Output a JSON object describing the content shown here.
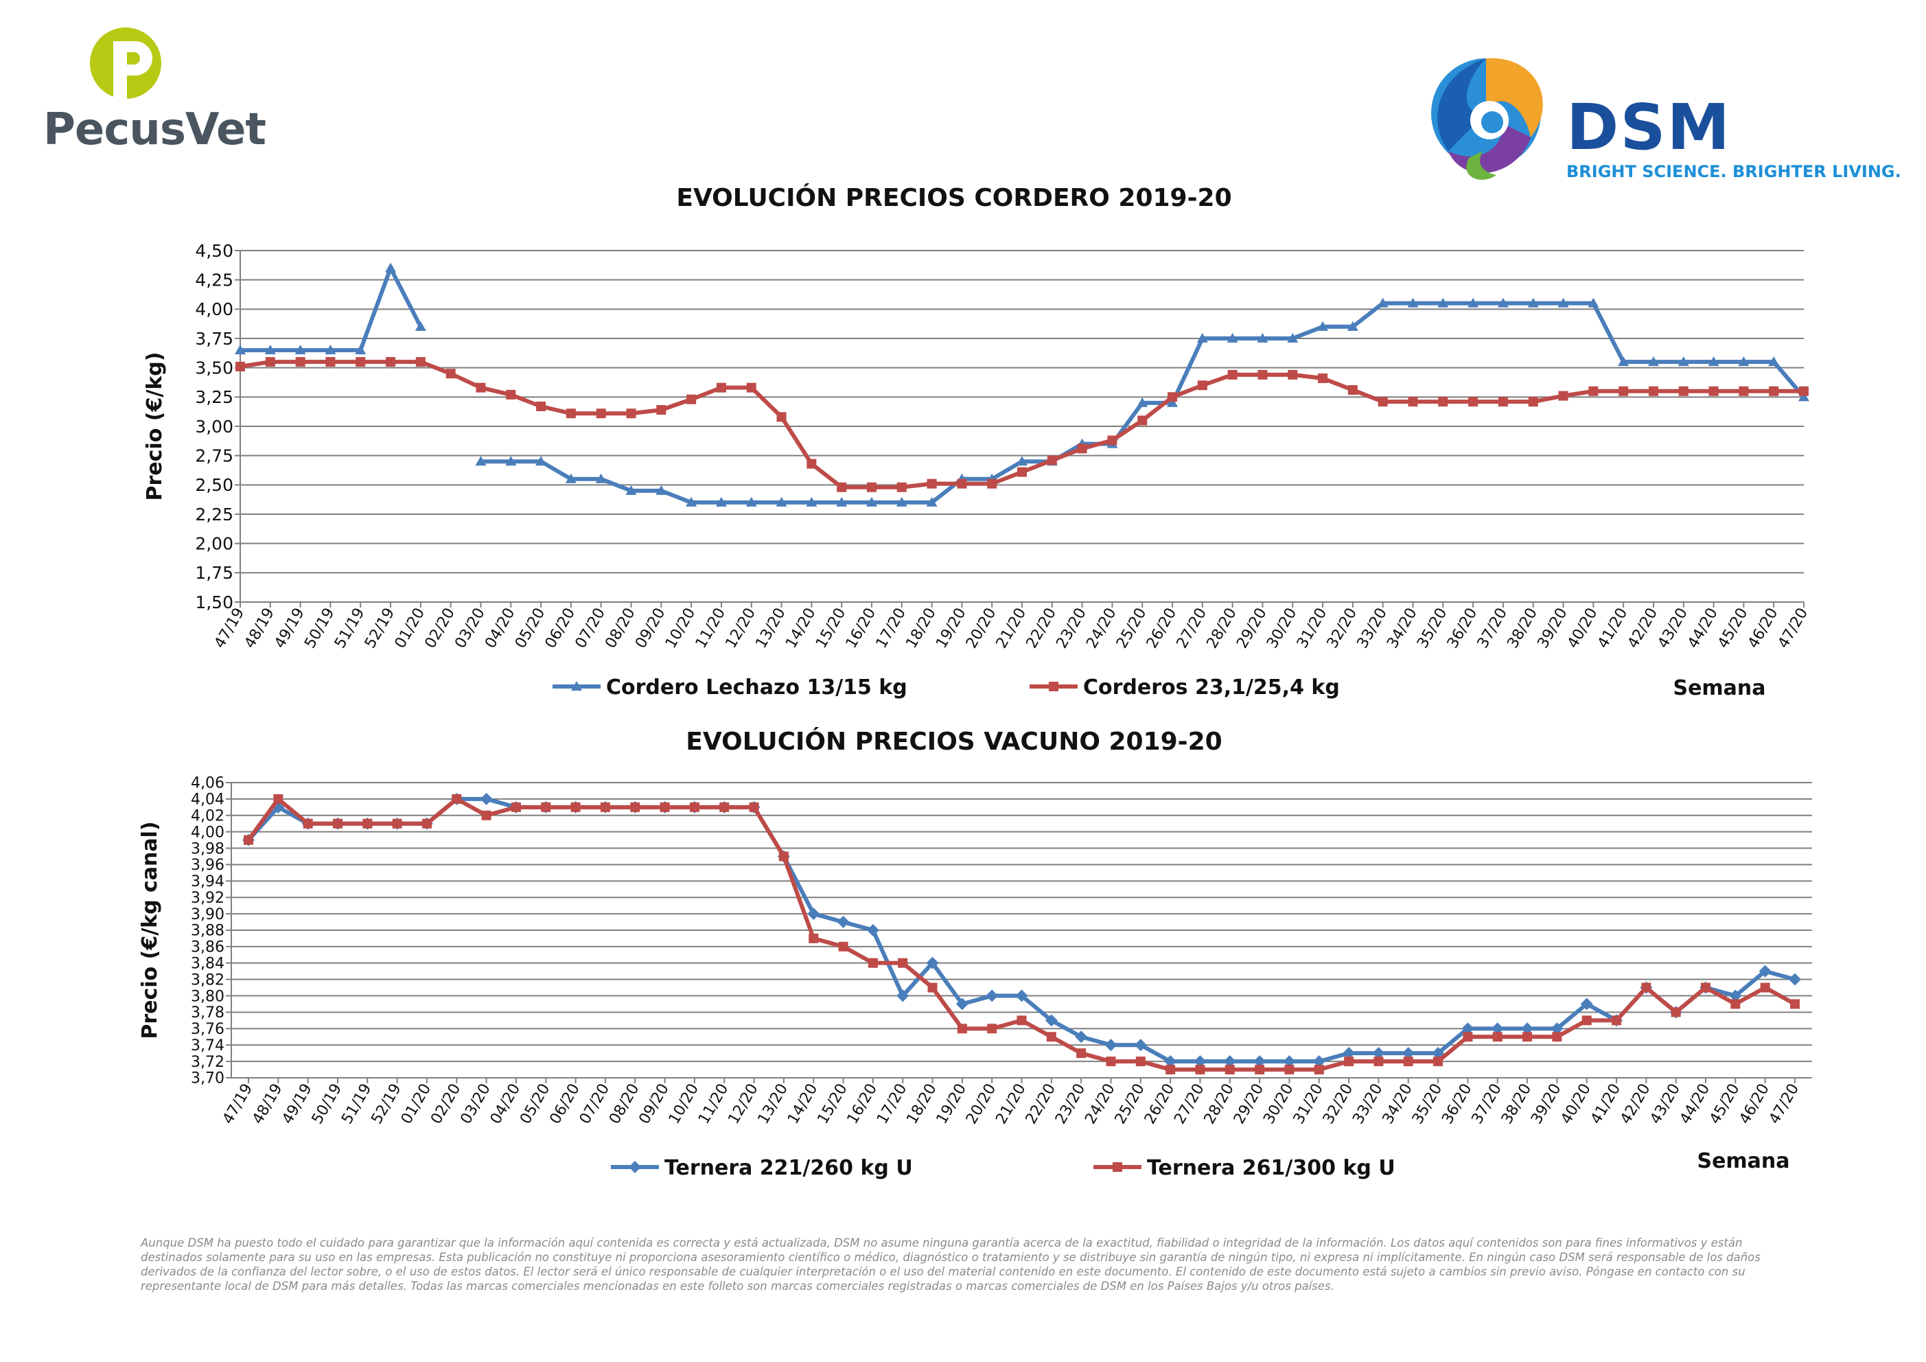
{
  "logos": {
    "pecusvet": {
      "name": "PecusVet",
      "icon": "pecusvet-p-icon"
    },
    "dsm": {
      "name": "DSM",
      "tagline": "BRIGHT SCIENCE. BRIGHTER LIVING.",
      "icon": "dsm-swirl-icon"
    }
  },
  "colors": {
    "blue": "#4a7ebb",
    "red": "#be4b48"
  },
  "chart_data": [
    {
      "type": "line",
      "title": "EVOLUCIÓN PRECIOS CORDERO 2019-20",
      "ylabel": "Precio (€/kg)",
      "xlabel": "Semana",
      "ylim": [
        1.5,
        4.5
      ],
      "ystep": 0.25,
      "grid": true,
      "legend": "bottom",
      "categories": [
        "47/19",
        "48/19",
        "49/19",
        "50/19",
        "51/19",
        "52/19",
        "01/20",
        "02/20",
        "03/20",
        "04/20",
        "05/20",
        "06/20",
        "07/20",
        "08/20",
        "09/20",
        "10/20",
        "11/20",
        "12/20",
        "13/20",
        "14/20",
        "15/20",
        "16/20",
        "17/20",
        "18/20",
        "19/20",
        "20/20",
        "21/20",
        "22/20",
        "23/20",
        "24/20",
        "25/20",
        "26/20",
        "27/20",
        "28/20",
        "29/20",
        "30/20",
        "31/20",
        "32/20",
        "33/20",
        "34/20",
        "35/20",
        "36/20",
        "37/20",
        "38/20",
        "39/20",
        "40/20",
        "41/20",
        "42/20",
        "43/20",
        "44/20",
        "45/20",
        "46/20",
        "47/20"
      ],
      "series": [
        {
          "name": "Cordero Lechazo 13/15 kg",
          "color": "#4a7ebb",
          "marker": "triangle",
          "values": [
            3.65,
            3.65,
            3.65,
            3.65,
            3.65,
            4.35,
            3.85,
            null,
            2.7,
            2.7,
            2.7,
            2.55,
            2.55,
            2.45,
            2.45,
            2.35,
            2.35,
            2.35,
            2.35,
            2.35,
            2.35,
            2.35,
            2.35,
            2.35,
            2.55,
            2.55,
            2.7,
            2.7,
            2.85,
            2.85,
            3.2,
            3.2,
            3.75,
            3.75,
            3.75,
            3.75,
            3.85,
            3.85,
            4.05,
            4.05,
            4.05,
            4.05,
            4.05,
            4.05,
            4.05,
            4.05,
            3.55,
            3.55,
            3.55,
            3.55,
            3.55,
            3.55,
            3.25
          ]
        },
        {
          "name": "Corderos 23,1/25,4 kg",
          "color": "#be4b48",
          "marker": "square",
          "values": [
            3.51,
            3.55,
            3.55,
            3.55,
            3.55,
            3.55,
            3.55,
            3.45,
            3.33,
            3.27,
            3.17,
            3.11,
            3.11,
            3.11,
            3.14,
            3.23,
            3.33,
            3.33,
            3.08,
            2.68,
            2.48,
            2.48,
            2.48,
            2.51,
            2.51,
            2.51,
            2.61,
            2.71,
            2.81,
            2.88,
            3.05,
            3.25,
            3.35,
            3.44,
            3.44,
            3.44,
            3.41,
            3.31,
            3.21,
            3.21,
            3.21,
            3.21,
            3.21,
            3.21,
            3.26,
            3.3,
            3.3,
            3.3,
            3.3,
            3.3,
            3.3,
            3.3,
            3.3
          ]
        }
      ]
    },
    {
      "type": "line",
      "title": "EVOLUCIÓN PRECIOS VACUNO 2019-20",
      "ylabel": "Precio (€/kg canal)",
      "xlabel": "Semana",
      "ylim": [
        3.7,
        4.06
      ],
      "ystep": 0.02,
      "grid": true,
      "legend": "bottom",
      "categories": [
        "47/19",
        "48/19",
        "49/19",
        "50/19",
        "51/19",
        "52/19",
        "01/20",
        "02/20",
        "03/20",
        "04/20",
        "05/20",
        "06/20",
        "07/20",
        "08/20",
        "09/20",
        "10/20",
        "11/20",
        "12/20",
        "13/20",
        "14/20",
        "15/20",
        "16/20",
        "17/20",
        "18/20",
        "19/20",
        "20/20",
        "21/20",
        "22/20",
        "23/20",
        "24/20",
        "25/20",
        "26/20",
        "27/20",
        "28/20",
        "29/20",
        "30/20",
        "31/20",
        "32/20",
        "33/20",
        "34/20",
        "35/20",
        "36/20",
        "37/20",
        "38/20",
        "39/20",
        "40/20",
        "41/20",
        "42/20",
        "43/20",
        "44/20",
        "45/20",
        "46/20",
        "47/20"
      ],
      "series": [
        {
          "name": "Ternera 221/260 kg U",
          "color": "#4a7ebb",
          "marker": "diamond",
          "values": [
            3.99,
            4.03,
            4.01,
            4.01,
            4.01,
            4.01,
            4.01,
            4.04,
            4.04,
            4.03,
            4.03,
            4.03,
            4.03,
            4.03,
            4.03,
            4.03,
            4.03,
            4.03,
            3.97,
            3.9,
            3.89,
            3.88,
            3.8,
            3.84,
            3.79,
            3.8,
            3.8,
            3.77,
            3.75,
            3.74,
            3.74,
            3.72,
            3.72,
            3.72,
            3.72,
            3.72,
            3.72,
            3.73,
            3.73,
            3.73,
            3.73,
            3.76,
            3.76,
            3.76,
            3.76,
            3.79,
            3.77,
            3.81,
            3.78,
            3.81,
            3.8,
            3.83,
            3.82
          ]
        },
        {
          "name": "Ternera 261/300 kg U",
          "color": "#be4b48",
          "marker": "square",
          "values": [
            3.99,
            4.04,
            4.01,
            4.01,
            4.01,
            4.01,
            4.01,
            4.04,
            4.02,
            4.03,
            4.03,
            4.03,
            4.03,
            4.03,
            4.03,
            4.03,
            4.03,
            4.03,
            3.97,
            3.87,
            3.86,
            3.84,
            3.84,
            3.81,
            3.76,
            3.76,
            3.77,
            3.75,
            3.73,
            3.72,
            3.72,
            3.71,
            3.71,
            3.71,
            3.71,
            3.71,
            3.71,
            3.72,
            3.72,
            3.72,
            3.72,
            3.75,
            3.75,
            3.75,
            3.75,
            3.77,
            3.77,
            3.81,
            3.78,
            3.81,
            3.79,
            3.81,
            3.79
          ]
        }
      ]
    }
  ],
  "disclaimer": "Aunque DSM ha puesto todo el cuidado para garantizar que la información aquí contenida es correcta y está actualizada, DSM no asume ninguna garantía acerca de la exactitud, fiabilidad o integridad de la información. Los datos aquí contenidos son para fines informativos y están destinados solamente para su uso en las empresas. Esta publicación no constituye ni proporciona asesoramiento científico o médico, diagnóstico o tratamiento y se distribuye sin garantía de ningún tipo, ni expresa ni implícitamente. En ningún caso DSM será responsable de los daños derivados de la confianza del lector sobre, o el uso de estos datos. El lector será el único responsable de cualquier interpretación o el uso del material contenido en este documento. El contenido de este documento está sujeto a cambios sin previo aviso. Póngase en contacto con su representante local de DSM para más detalles. Todas las marcas comerciales mencionadas en este folleto son marcas comerciales registradas o marcas comerciales de DSM en los Países Bajos y/u otros países."
}
